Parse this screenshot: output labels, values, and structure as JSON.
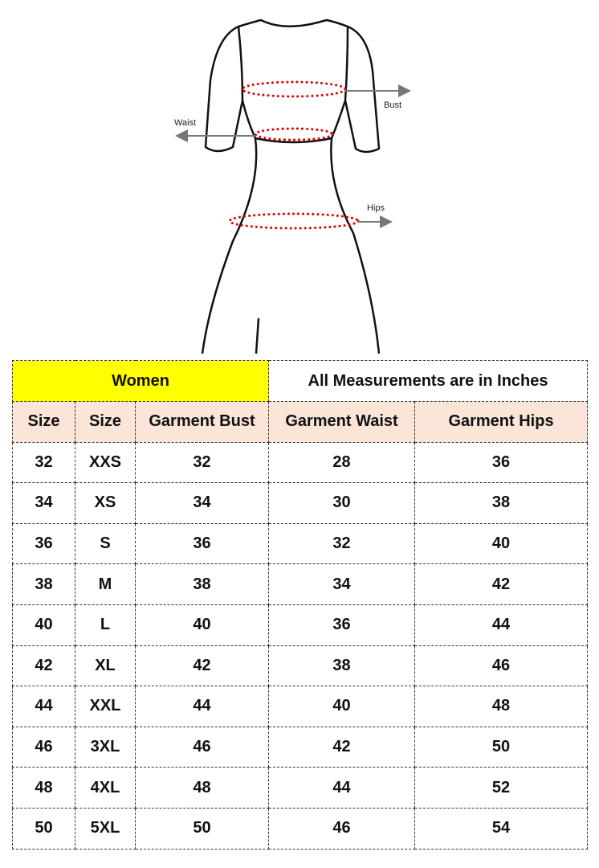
{
  "diagram": {
    "labels": {
      "bust": "Bust",
      "waist": "Waist",
      "hips": "Hips"
    },
    "colors": {
      "outline": "#111111",
      "measure_dots": "#e00000",
      "arrow": "#777777"
    }
  },
  "table": {
    "title": "Women",
    "note": "All Measurements are in Inches",
    "colors": {
      "title_bg": "#ffff00",
      "header_bg": "#fbe4d8"
    },
    "headers": [
      "Size",
      "Size",
      "Garment Bust",
      "Garment Waist",
      "Garment Hips"
    ],
    "rows": [
      [
        "32",
        "XXS",
        "32",
        "28",
        "36"
      ],
      [
        "34",
        "XS",
        "34",
        "30",
        "38"
      ],
      [
        "36",
        "S",
        "36",
        "32",
        "40"
      ],
      [
        "38",
        "M",
        "38",
        "34",
        "42"
      ],
      [
        "40",
        "L",
        "40",
        "36",
        "44"
      ],
      [
        "42",
        "XL",
        "42",
        "38",
        "46"
      ],
      [
        "44",
        "XXL",
        "44",
        "40",
        "48"
      ],
      [
        "46",
        "3XL",
        "46",
        "42",
        "50"
      ],
      [
        "48",
        "4XL",
        "48",
        "44",
        "52"
      ],
      [
        "50",
        "5XL",
        "50",
        "46",
        "54"
      ]
    ]
  }
}
